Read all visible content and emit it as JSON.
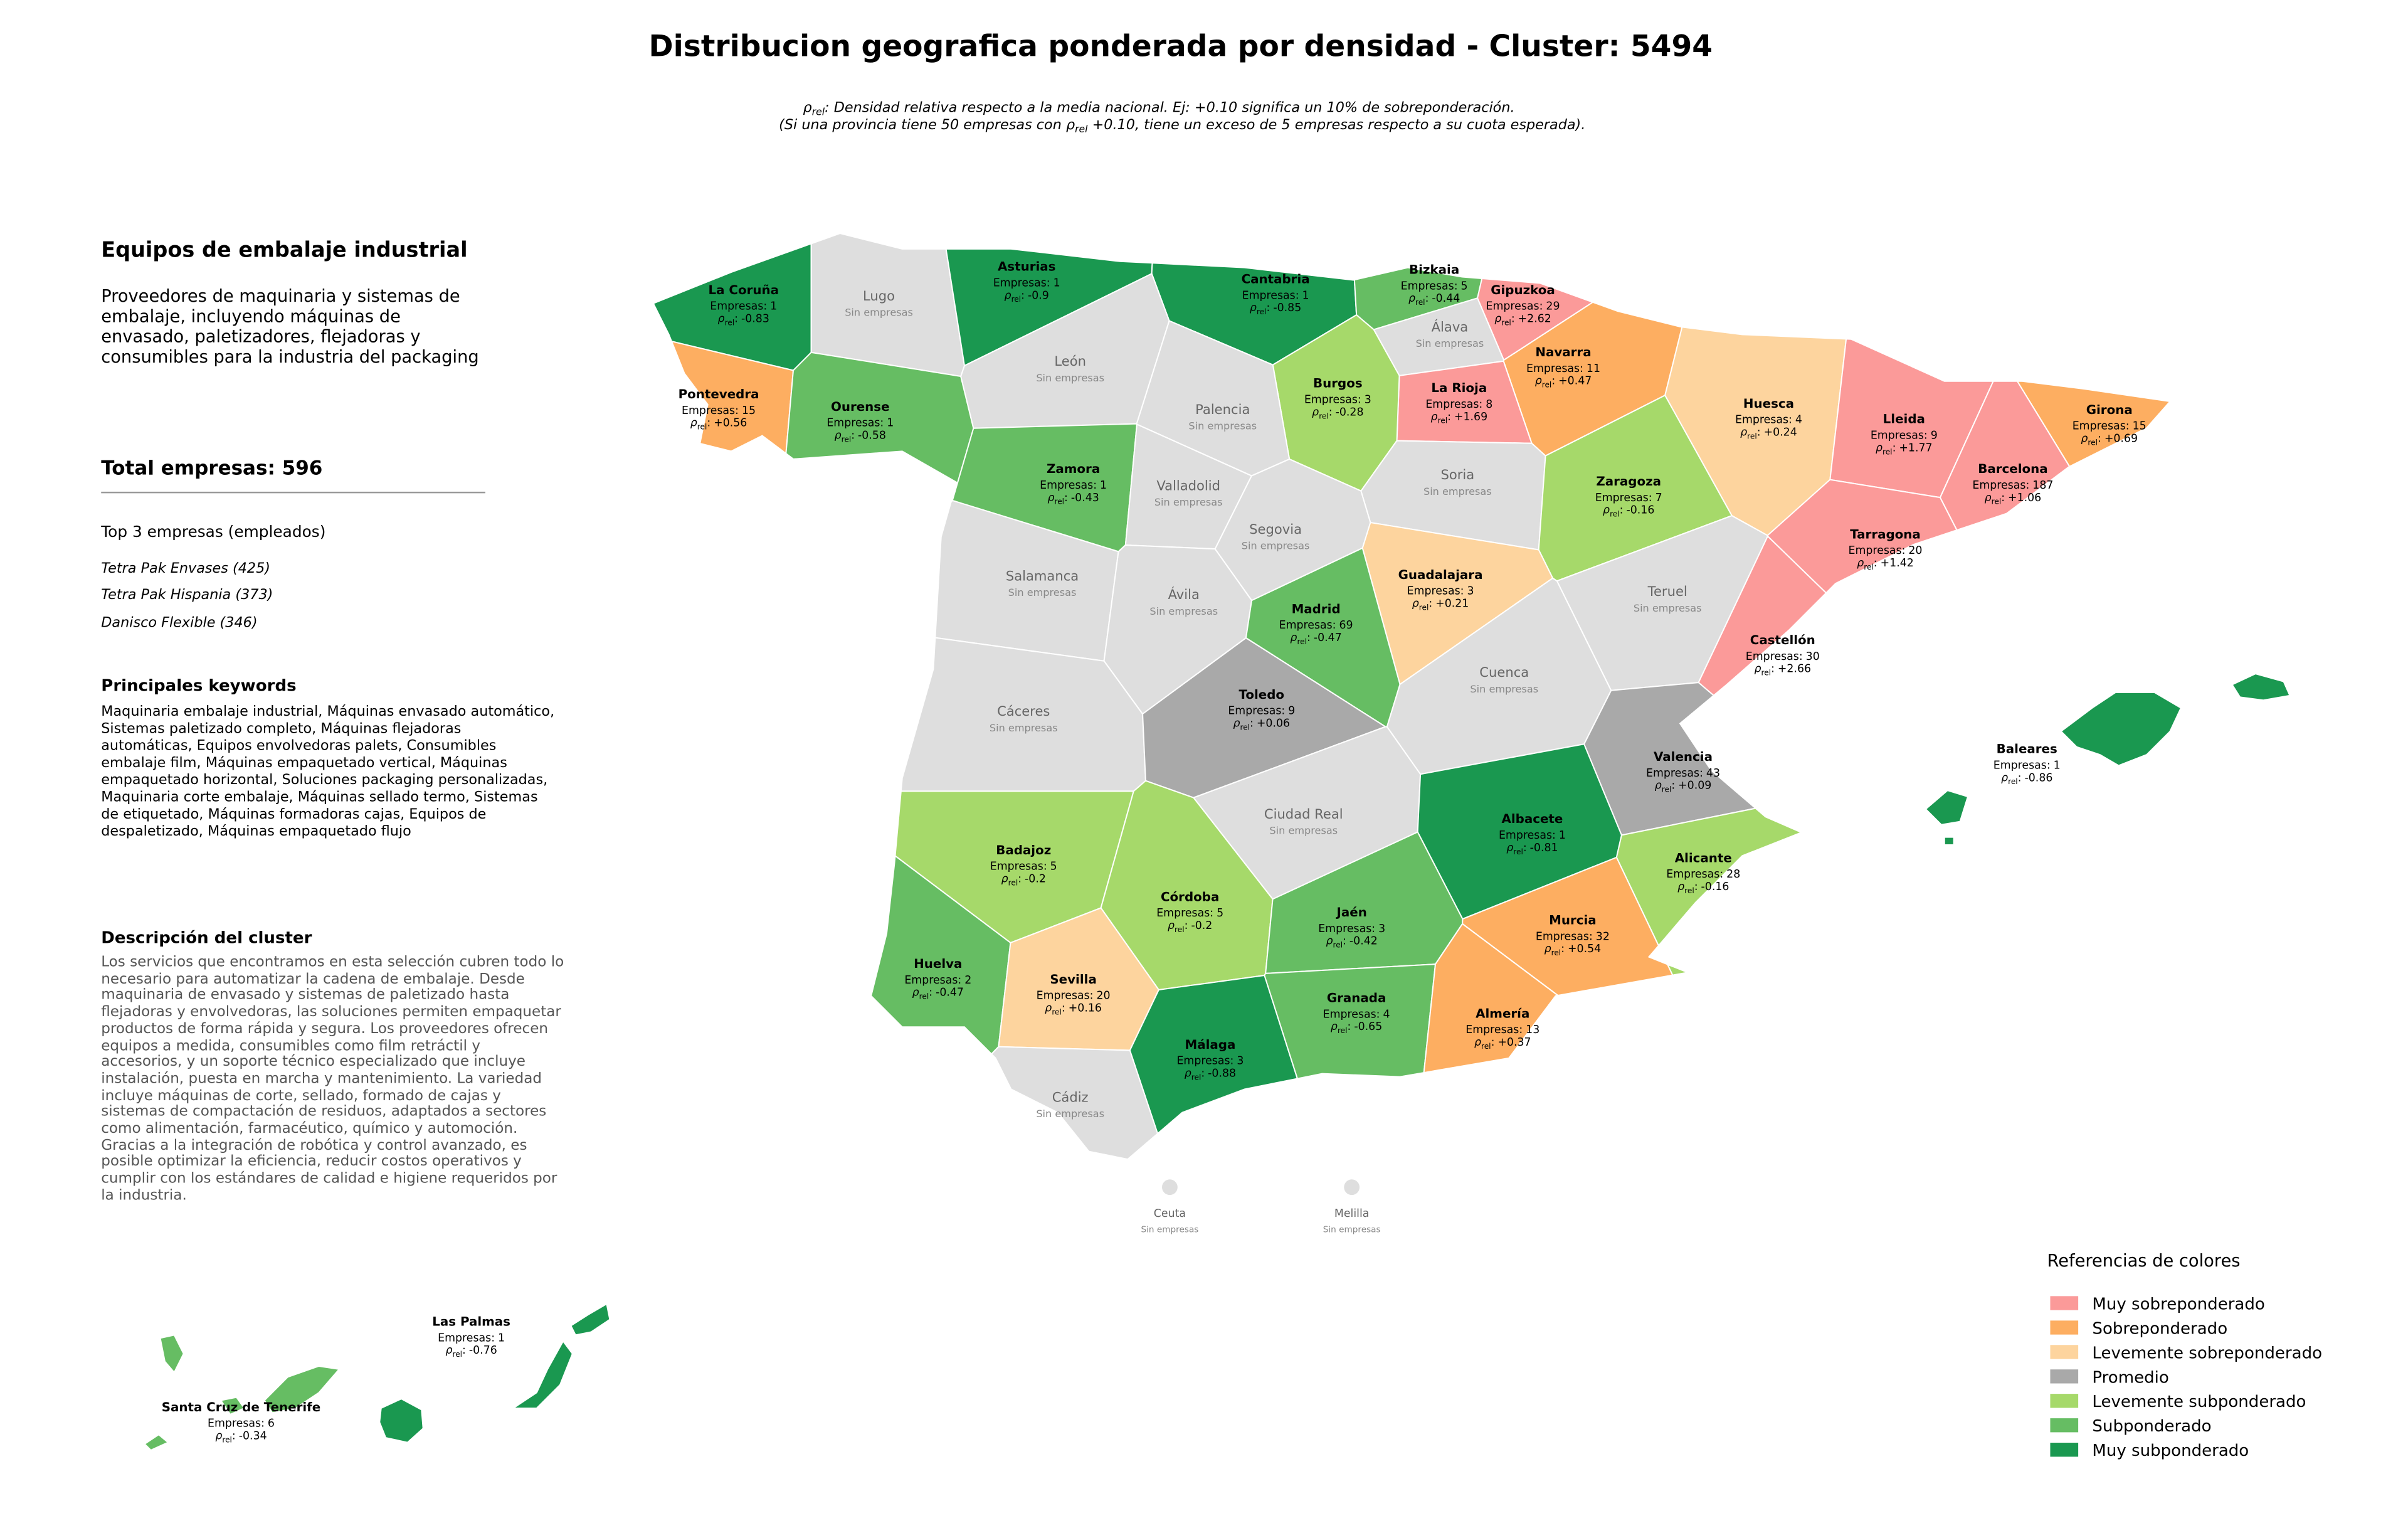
{
  "header": {
    "title": "Distribucion geografica ponderada por densidad - Cluster: 5494",
    "rho_symbol": "ρ",
    "rho_sub": "rel",
    "rho_sep": ":",
    "note_line1_after": ": Densidad relativa respecto a la media nacional. Ej: +0.10 significa un 10% de sobreponderación.",
    "note_line2_before": "(Si una provincia tiene 50 empresas con ",
    "note_line2_after": " +0.10, tiene un exceso de 5 empresas respecto a su cuota esperada)."
  },
  "panel": {
    "title": "Equipos de embalaje industrial",
    "summary": "Proveedores de maquinaria y sistemas de embalaje, incluyendo máquinas de envasado, paletizadores, flejadoras y consumibles para la industria del packaging",
    "total": "Total empresas: 596",
    "top_title": "Top 3 empresas (empleados)",
    "top": [
      "Tetra Pak Envases (425)",
      "Tetra Pak Hispania (373)",
      "Danisco Flexible (346)"
    ],
    "keywords_title": "Principales keywords",
    "keywords": "Maquinaria embalaje industrial, Máquinas envasado automático, Sistemas paletizado completo, Máquinas flejadoras automáticas, Equipos envolvedoras palets, Consumibles embalaje film, Máquinas empaquetado vertical, Máquinas empaquetado horizontal, Soluciones packaging personalizadas, Maquinaria corte embalaje, Máquinas sellado termo, Sistemas de etiquetado, Máquinas formadoras cajas, Equipos de despaletizado, Máquinas empaquetado flujo",
    "description_title": "Descripción del cluster",
    "description": "Los servicios que encontramos en esta selección cubren todo lo necesario para automatizar la cadena de embalaje. Desde maquinaria de envasado y sistemas de paletizado hasta flejadoras y envolvedoras, las soluciones permiten empaquetar productos de forma rápida y segura. Los proveedores ofrecen equipos a medida, consumibles como film retráctil y accesorios, y un soporte técnico especializado que incluye instalación, puesta en marcha y mantenimiento. La variedad incluye máquinas de corte, sellado, formado de cajas y sistemas de compactación de residuos, adaptados a sectores como alimentación, farmacéutico, químico y automoción. Gracias a la integración de robótica y control avanzado, es posible optimizar la eficiencia, reducir costos operativos y cumplir con los estándares de calidad e higiene requeridos por la industria."
  },
  "map": {
    "empresas_label": "Empresas:",
    "empty_label": "Sin empresas",
    "empty_color": "#dedede",
    "regions": [
      {
        "name": "La Coruña",
        "empresas": 1,
        "rho": -0.83,
        "color": "#1a9850"
      },
      {
        "name": "Lugo",
        "color": "#dedede"
      },
      {
        "name": "Asturias",
        "empresas": 1,
        "rho": -0.9,
        "color": "#1a9850"
      },
      {
        "name": "Cantabria",
        "empresas": 1,
        "rho": -0.85,
        "color": "#1a9850"
      },
      {
        "name": "Bizkaia",
        "empresas": 5,
        "rho": -0.44,
        "color": "#66bd63"
      },
      {
        "name": "Gipuzkoa",
        "empresas": 29,
        "rho": {
          "value": 2.62,
          "label": "+2.62"
        },
        "color": "#fb9a99"
      },
      {
        "name": "Álava",
        "color": "#dedede"
      },
      {
        "name": "Navarra",
        "empresas": 11,
        "rho": {
          "value": 0.47,
          "label": "+0.47"
        },
        "color": "#fdae61"
      },
      {
        "name": "La Rioja",
        "empresas": 8,
        "rho": {
          "value": 1.69,
          "label": "+1.69"
        },
        "color": "#fb9a99"
      },
      {
        "name": "Burgos",
        "empresas": 3,
        "rho": -0.28,
        "color": "#a6d96a"
      },
      {
        "name": "Pontevedra",
        "empresas": 15,
        "rho": {
          "value": 0.56,
          "label": "+0.56"
        },
        "color": "#fdae61"
      },
      {
        "name": "Ourense",
        "empresas": 1,
        "rho": -0.58,
        "color": "#66bd63"
      },
      {
        "name": "León",
        "color": "#dedede"
      },
      {
        "name": "Palencia",
        "color": "#dedede"
      },
      {
        "name": "Zamora",
        "empresas": 1,
        "rho": -0.43,
        "color": "#66bd63"
      },
      {
        "name": "Valladolid",
        "color": "#dedede"
      },
      {
        "name": "Huesca",
        "empresas": 4,
        "rho": {
          "value": 0.24,
          "label": "+0.24"
        },
        "color": "#fdd49e"
      },
      {
        "name": "Lleida",
        "empresas": 9,
        "rho": {
          "value": 1.77,
          "label": "+1.77"
        },
        "color": "#fb9a99"
      },
      {
        "name": "Girona",
        "empresas": 15,
        "rho": {
          "value": 0.69,
          "label": "+0.69"
        },
        "color": "#fdae61"
      },
      {
        "name": "Barcelona",
        "empresas": 187,
        "rho": {
          "value": 1.06,
          "label": "+1.06"
        },
        "color": "#fb9a99"
      },
      {
        "name": "Soria",
        "color": "#dedede"
      },
      {
        "name": "Zaragoza",
        "empresas": 7,
        "rho": -0.16,
        "color": "#a6d96a"
      },
      {
        "name": "Tarragona",
        "empresas": 20,
        "rho": {
          "value": 1.42,
          "label": "+1.42"
        },
        "color": "#fb9a99"
      },
      {
        "name": "Segovia",
        "color": "#dedede"
      },
      {
        "name": "Salamanca",
        "color": "#dedede"
      },
      {
        "name": "Ávila",
        "color": "#dedede"
      },
      {
        "name": "Guadalajara",
        "empresas": 3,
        "rho": {
          "value": 0.21,
          "label": "+0.21"
        },
        "color": "#fdd49e"
      },
      {
        "name": "Madrid",
        "empresas": 69,
        "rho": -0.47,
        "color": "#66bd63"
      },
      {
        "name": "Teruel",
        "color": "#dedede"
      },
      {
        "name": "Castellón",
        "empresas": 30,
        "rho": {
          "value": 2.66,
          "label": "+2.66"
        },
        "color": "#fb9a99"
      },
      {
        "name": "Cáceres",
        "color": "#dedede"
      },
      {
        "name": "Toledo",
        "empresas": 9,
        "rho": {
          "value": 0.06,
          "label": "+0.06"
        },
        "color": "#a9a9a9"
      },
      {
        "name": "Cuenca",
        "color": "#dedede"
      },
      {
        "name": "Valencia",
        "empresas": 43,
        "rho": {
          "value": 0.09,
          "label": "+0.09"
        },
        "color": "#a9a9a9"
      },
      {
        "name": "Ciudad Real",
        "color": "#dedede"
      },
      {
        "name": "Albacete",
        "empresas": 1,
        "rho": -0.81,
        "color": "#1a9850"
      },
      {
        "name": "Badajoz",
        "empresas": 5,
        "rho": -0.2,
        "color": "#a6d96a"
      },
      {
        "name": "Alicante",
        "empresas": 28,
        "rho": -0.16,
        "color": "#a6d96a"
      },
      {
        "name": "Córdoba",
        "empresas": 5,
        "rho": -0.2,
        "color": "#a6d96a"
      },
      {
        "name": "Jaén",
        "empresas": 3,
        "rho": -0.42,
        "color": "#66bd63"
      },
      {
        "name": "Murcia",
        "empresas": 32,
        "rho": {
          "value": 0.54,
          "label": "+0.54"
        },
        "color": "#fdae61"
      },
      {
        "name": "Huelva",
        "empresas": 2,
        "rho": -0.47,
        "color": "#66bd63"
      },
      {
        "name": "Sevilla",
        "empresas": 20,
        "rho": {
          "value": 0.16,
          "label": "+0.16"
        },
        "color": "#fdd49e"
      },
      {
        "name": "Granada",
        "empresas": 4,
        "rho": -0.65,
        "color": "#66bd63"
      },
      {
        "name": "Almería",
        "empresas": 13,
        "rho": {
          "value": 0.37,
          "label": "+0.37"
        },
        "color": "#fdae61"
      },
      {
        "name": "Málaga",
        "empresas": 3,
        "rho": -0.88,
        "color": "#1a9850"
      },
      {
        "name": "Cádiz",
        "color": "#dedede"
      },
      {
        "name": "Baleares",
        "empresas": 1,
        "rho": -0.86,
        "color": "#1a9850"
      },
      {
        "name": "Las Palmas",
        "empresas": 1,
        "rho": -0.76,
        "color": "#1a9850"
      },
      {
        "name": "Santa Cruz de Tenerife",
        "empresas": 6,
        "rho": -0.34,
        "color": "#66bd63"
      },
      {
        "name": "Ceuta",
        "color": "#dedede"
      },
      {
        "name": "Melilla",
        "color": "#dedede"
      }
    ]
  },
  "legend": {
    "title": "Referencias de colores",
    "items": [
      {
        "label": "Muy sobreponderado",
        "color": "#fb9a99"
      },
      {
        "label": "Sobreponderado",
        "color": "#fdae61"
      },
      {
        "label": "Levemente sobreponderado",
        "color": "#fdd49e"
      },
      {
        "label": "Promedio",
        "color": "#a9a9a9"
      },
      {
        "label": "Levemente subponderado",
        "color": "#a6d96a"
      },
      {
        "label": "Subponderado",
        "color": "#66bd63"
      },
      {
        "label": "Muy subponderado",
        "color": "#1a9850"
      }
    ]
  }
}
